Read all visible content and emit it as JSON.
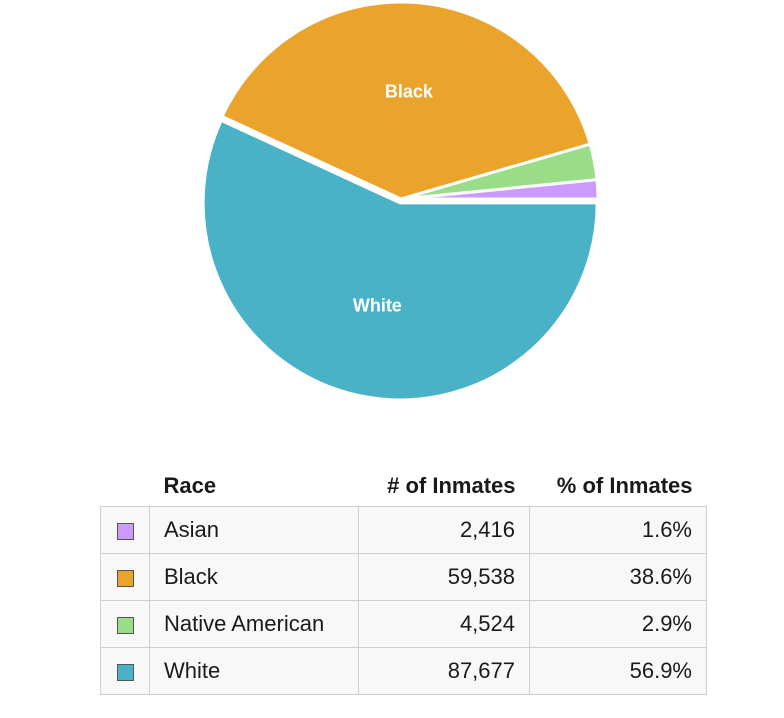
{
  "chart_data": {
    "type": "pie",
    "slices": [
      {
        "label": "Asian",
        "value": 2416,
        "percent_text": "1.6%",
        "value_text": "2,416",
        "color": "#cc99ff",
        "show_label": false
      },
      {
        "label": "Black",
        "value": 59538,
        "percent_text": "38.6%",
        "value_text": "59,538",
        "color": "#eaa32b",
        "show_label": true
      },
      {
        "label": "Native American",
        "value": 4524,
        "percent_text": "2.9%",
        "value_text": "4,524",
        "color": "#99dd88",
        "show_label": false
      },
      {
        "label": "White",
        "value": 87677,
        "percent_text": "56.9%",
        "value_text": "87,677",
        "color": "#4ab2c6",
        "show_label": true
      }
    ],
    "exploded_slice": "White",
    "label_color": "#ffffff"
  },
  "table": {
    "headers": {
      "race": "Race",
      "count": "# of Inmates",
      "percent": "% of Inmates"
    }
  }
}
